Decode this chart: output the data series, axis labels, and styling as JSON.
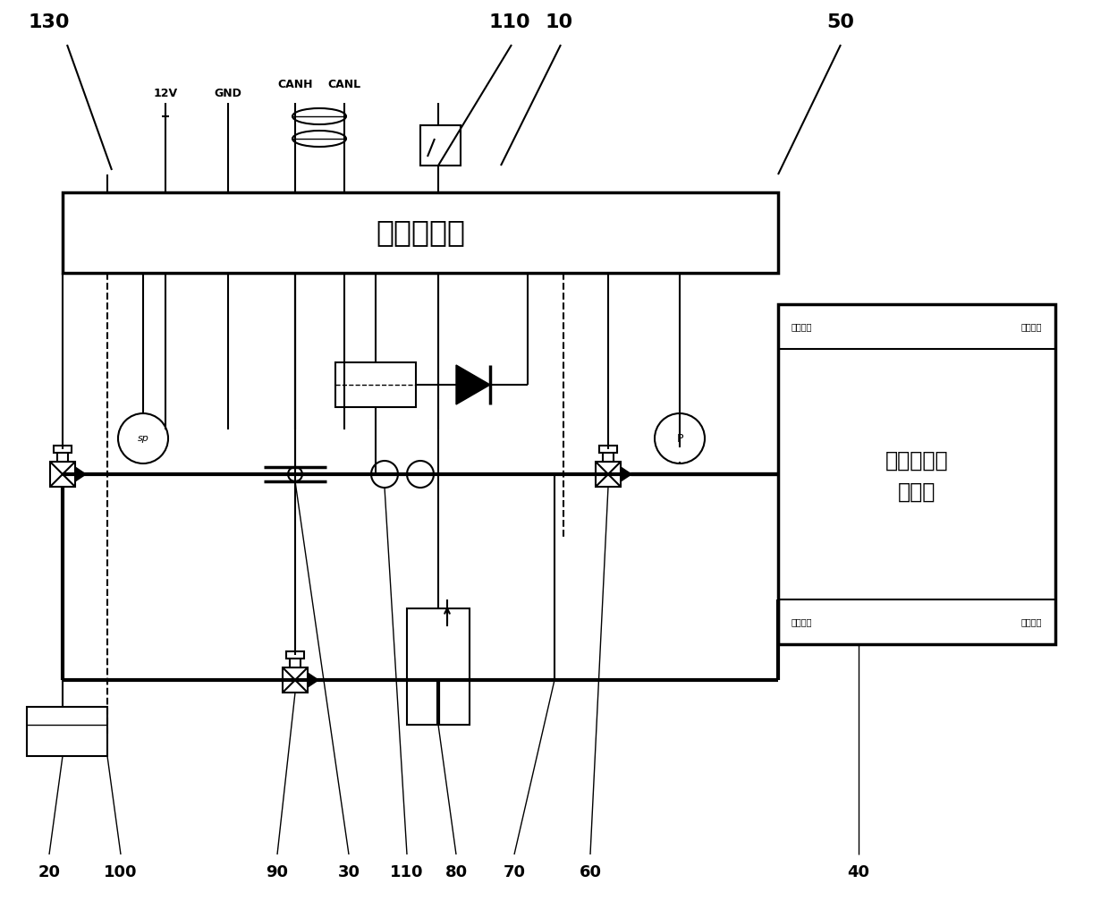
{
  "bg_color": "#ffffff",
  "controller_label": "系统控制器",
  "fuel_cell_line1": "燃料电池电",
  "fuel_cell_line2": "堆模块",
  "anode_inlet": "阳极入口",
  "cathode_inlet": "阴极入口",
  "anode_outlet": "阳极出口",
  "cathode_outlet": "阴极出口",
  "conn_12v": "12V",
  "conn_gnd": "GND",
  "conn_canh": "CANH",
  "conn_canl": "CANL",
  "lbl_130": "130",
  "lbl_110a": "110",
  "lbl_10": "10",
  "lbl_50": "50",
  "lbl_20": "20",
  "lbl_100": "100",
  "lbl_90": "90",
  "lbl_30": "30",
  "lbl_110b": "110",
  "lbl_80": "80",
  "lbl_70": "70",
  "lbl_60": "60",
  "lbl_40": "40"
}
